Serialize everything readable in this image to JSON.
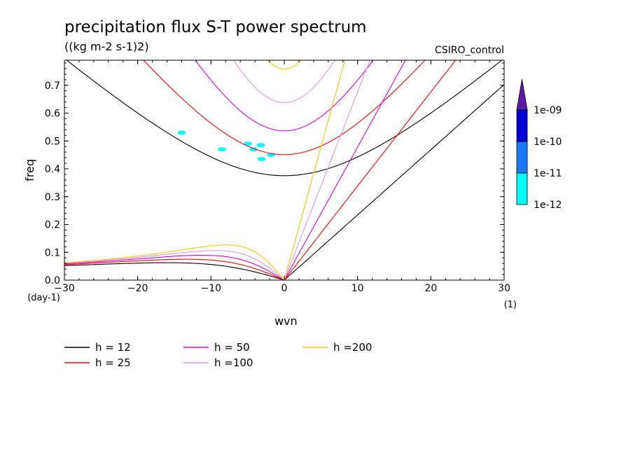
{
  "chart_data": {
    "type": "contour",
    "title": "precipitation flux S-T power spectrum",
    "subtitle": "((kg m-2 s-1)2)",
    "model_label": "CSIRO_control",
    "xlabel": "wvn",
    "ylabel": "freq",
    "x_unit": "(1)",
    "y_unit": "(day-1)",
    "xlim": [
      -30,
      30
    ],
    "ylim": [
      0,
      0.79
    ],
    "x_ticks": [
      -30,
      -20,
      -10,
      0,
      10,
      20,
      30
    ],
    "x_tick_labels": [
      "−30",
      "−20",
      "−10",
      "0",
      "10",
      "20",
      "30"
    ],
    "y_ticks": [
      0.0,
      0.1,
      0.2,
      0.3,
      0.4,
      0.5,
      0.6,
      0.7
    ],
    "y_tick_labels": [
      "0.0",
      "0.1",
      "0.2",
      "0.3",
      "0.4",
      "0.5",
      "0.6",
      "0.7"
    ],
    "dispersion_curves": [
      {
        "name": "h = 12",
        "h": 12,
        "color": "#000000"
      },
      {
        "name": "h = 25",
        "h": 25,
        "color": "#ff0000"
      },
      {
        "name": "h = 50",
        "h": 50,
        "color": "#dd00dd"
      },
      {
        "name": "h =100",
        "h": 100,
        "color": "#dd99dd"
      },
      {
        "name": "h =200",
        "h": 200,
        "color": "#f5c800"
      }
    ],
    "shaded_patches": [
      {
        "x": -14,
        "y": 0.53,
        "level": "1e-12"
      },
      {
        "x": -8.5,
        "y": 0.47,
        "level": "1e-12"
      },
      {
        "x": -5,
        "y": 0.49,
        "level": "1e-12"
      },
      {
        "x": -3.2,
        "y": 0.485,
        "level": "1e-12"
      },
      {
        "x": -1.8,
        "y": 0.45,
        "level": "1e-12"
      },
      {
        "x": -4.2,
        "y": 0.47,
        "level": "1e-12"
      },
      {
        "x": -3.1,
        "y": 0.435,
        "level": "1e-12"
      }
    ],
    "colorbar": {
      "levels": [
        "1e-12",
        "1e-11",
        "1e-10",
        "1e-09"
      ],
      "colors": [
        "#00ffff",
        "#1a78ff",
        "#0000dd",
        "#0000a0",
        "#5a1aa8"
      ]
    }
  }
}
